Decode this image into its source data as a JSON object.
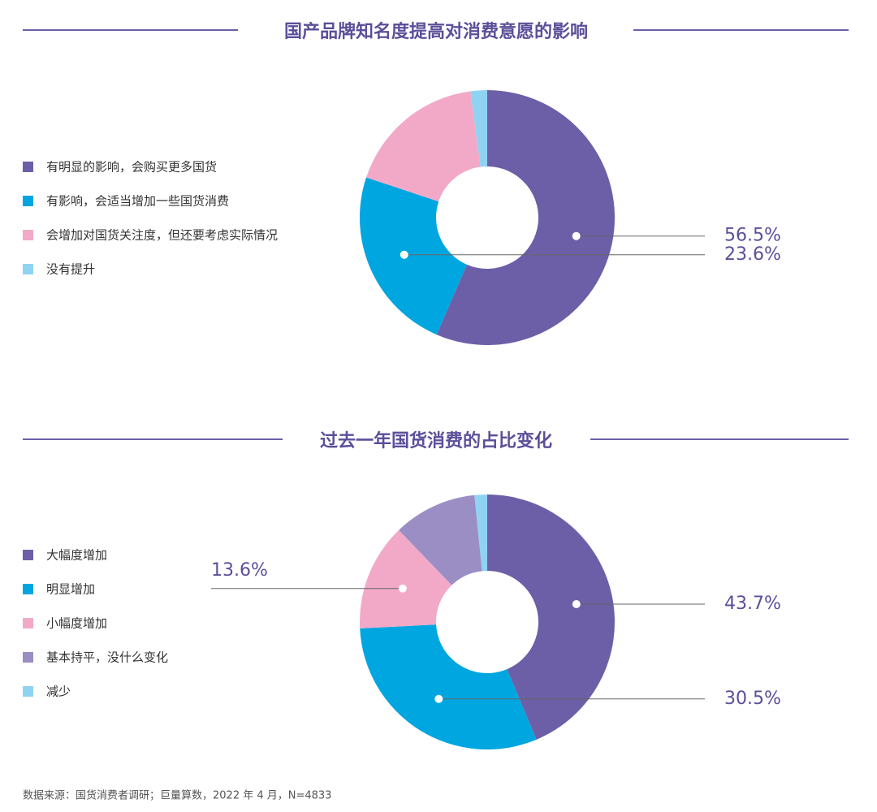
{
  "chart_data": [
    {
      "type": "pie",
      "title": "国产品牌知名度提高对消费意愿的影响",
      "categories": [
        "有明显的影响，会购买更多国货",
        "有影响，会适当增加一些国货消费",
        "会增加对国货关注度，但还要考虑实际情况",
        "没有提升"
      ],
      "values": [
        56.5,
        23.6,
        17.8,
        2.1
      ],
      "value_labels": [
        "56.5%",
        "23.6%",
        null,
        null
      ],
      "colors": [
        "#6c5fa7",
        "#00a6e0",
        "#f2a9c8",
        "#8fd3f3"
      ]
    },
    {
      "type": "pie",
      "title": "过去一年国货消费的占比变化",
      "categories": [
        "大幅度增加",
        "明显增加",
        "小幅度增加",
        "基本持平，没什么变化",
        "减少"
      ],
      "values": [
        43.7,
        30.5,
        13.6,
        10.6,
        1.6
      ],
      "value_labels": [
        "43.7%",
        "30.5%",
        "13.6%",
        null,
        null
      ],
      "colors": [
        "#6c5fa7",
        "#00a6e0",
        "#f2a9c8",
        "#9b8ec4",
        "#8fd3f3"
      ]
    }
  ],
  "source": "数据来源：国货消费者调研；巨量算数，2022 年 4 月，N=4833"
}
